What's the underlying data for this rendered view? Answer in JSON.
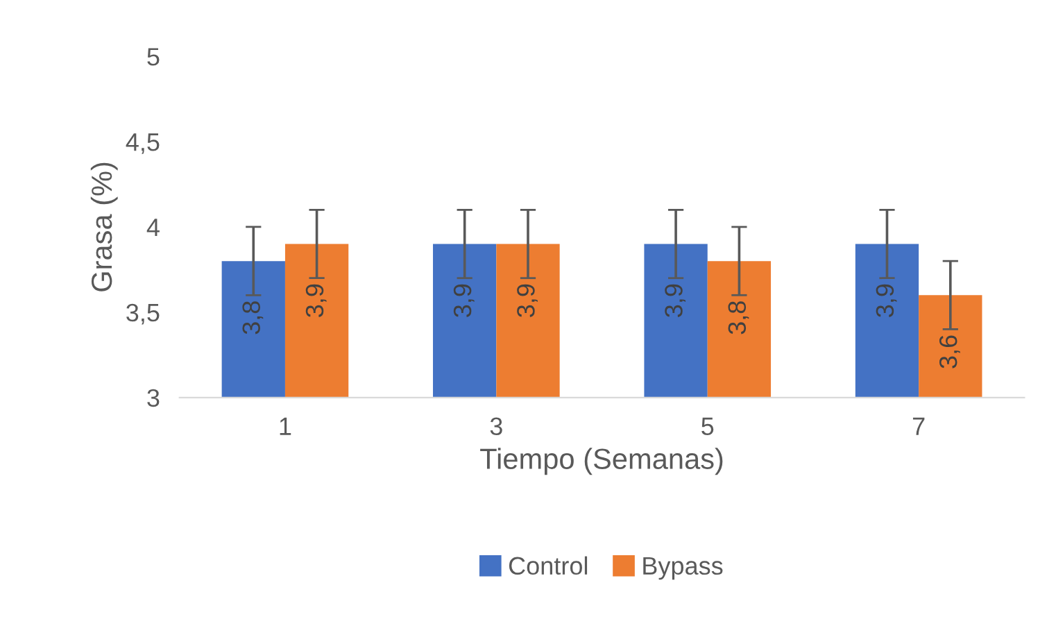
{
  "chart_data": {
    "type": "bar",
    "xlabel": "Tiempo (Semanas)",
    "ylabel": "Grasa (%)",
    "categories": [
      "1",
      "3",
      "5",
      "7"
    ],
    "series": [
      {
        "name": "Control",
        "color": "#4472c4",
        "values": [
          3.8,
          3.9,
          3.9,
          3.9
        ],
        "errors": [
          0.2,
          0.2,
          0.2,
          0.2
        ],
        "value_labels": [
          "3,8",
          "3,9",
          "3,9",
          "3,9"
        ]
      },
      {
        "name": "Bypass",
        "color": "#ed7d31",
        "values": [
          3.9,
          3.9,
          3.8,
          3.6
        ],
        "errors": [
          0.2,
          0.2,
          0.2,
          0.2
        ],
        "value_labels": [
          "3,9",
          "3,9",
          "3,8",
          "3,6"
        ]
      }
    ],
    "ylim": [
      3,
      5
    ],
    "yticks": [
      3,
      {
        "value": 3.5,
        "label": "3,5"
      },
      4,
      {
        "value": 4.5,
        "label": "4,5"
      },
      5
    ],
    "grid": false,
    "legend": "bottom"
  }
}
